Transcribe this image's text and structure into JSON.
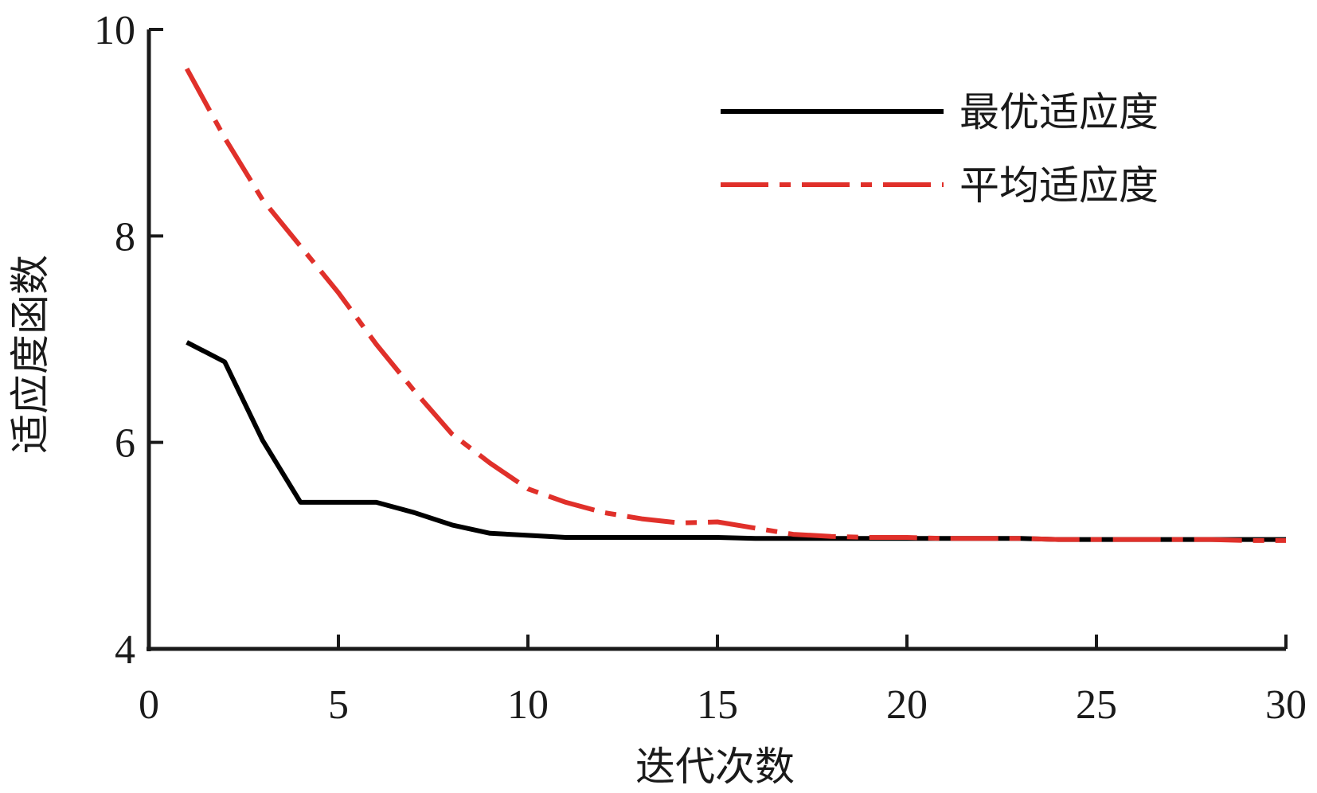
{
  "chart_data": {
    "type": "line",
    "title": "",
    "xlabel": "迭代次数",
    "ylabel": "适应度函数",
    "xlim": [
      0,
      30
    ],
    "ylim": [
      4,
      10
    ],
    "xticks": [
      "0",
      "5",
      "10",
      "15",
      "20",
      "25",
      "30"
    ],
    "yticks": [
      "4",
      "6",
      "8",
      "10"
    ],
    "grid": false,
    "legend_position": "top-right",
    "series": [
      {
        "name": "最优适应度",
        "color": "#000000",
        "style": "solid",
        "x": [
          1,
          2,
          3,
          4,
          5,
          6,
          7,
          8,
          9,
          10,
          11,
          12,
          13,
          14,
          15,
          16,
          17,
          18,
          19,
          20,
          21,
          22,
          23,
          24,
          25,
          26,
          27,
          28,
          29,
          30
        ],
        "y": [
          6.97,
          6.78,
          6.02,
          5.42,
          5.42,
          5.42,
          5.32,
          5.2,
          5.12,
          5.1,
          5.08,
          5.08,
          5.08,
          5.08,
          5.08,
          5.07,
          5.07,
          5.07,
          5.07,
          5.07,
          5.07,
          5.07,
          5.07,
          5.06,
          5.06,
          5.06,
          5.06,
          5.06,
          5.06,
          5.06
        ]
      },
      {
        "name": "平均适应度",
        "color": "#e0302a",
        "style": "dash-dot",
        "x": [
          1,
          2,
          3,
          4,
          5,
          6,
          7,
          8,
          9,
          10,
          11,
          12,
          13,
          14,
          15,
          16,
          17,
          18,
          19,
          20,
          21,
          22,
          23,
          24,
          25,
          26,
          27,
          28,
          29,
          30
        ],
        "y": [
          9.62,
          8.95,
          8.35,
          7.9,
          7.45,
          6.95,
          6.5,
          6.08,
          5.8,
          5.55,
          5.42,
          5.32,
          5.26,
          5.22,
          5.23,
          5.17,
          5.11,
          5.09,
          5.08,
          5.08,
          5.07,
          5.07,
          5.07,
          5.06,
          5.06,
          5.06,
          5.06,
          5.06,
          5.05,
          5.05
        ]
      }
    ]
  }
}
